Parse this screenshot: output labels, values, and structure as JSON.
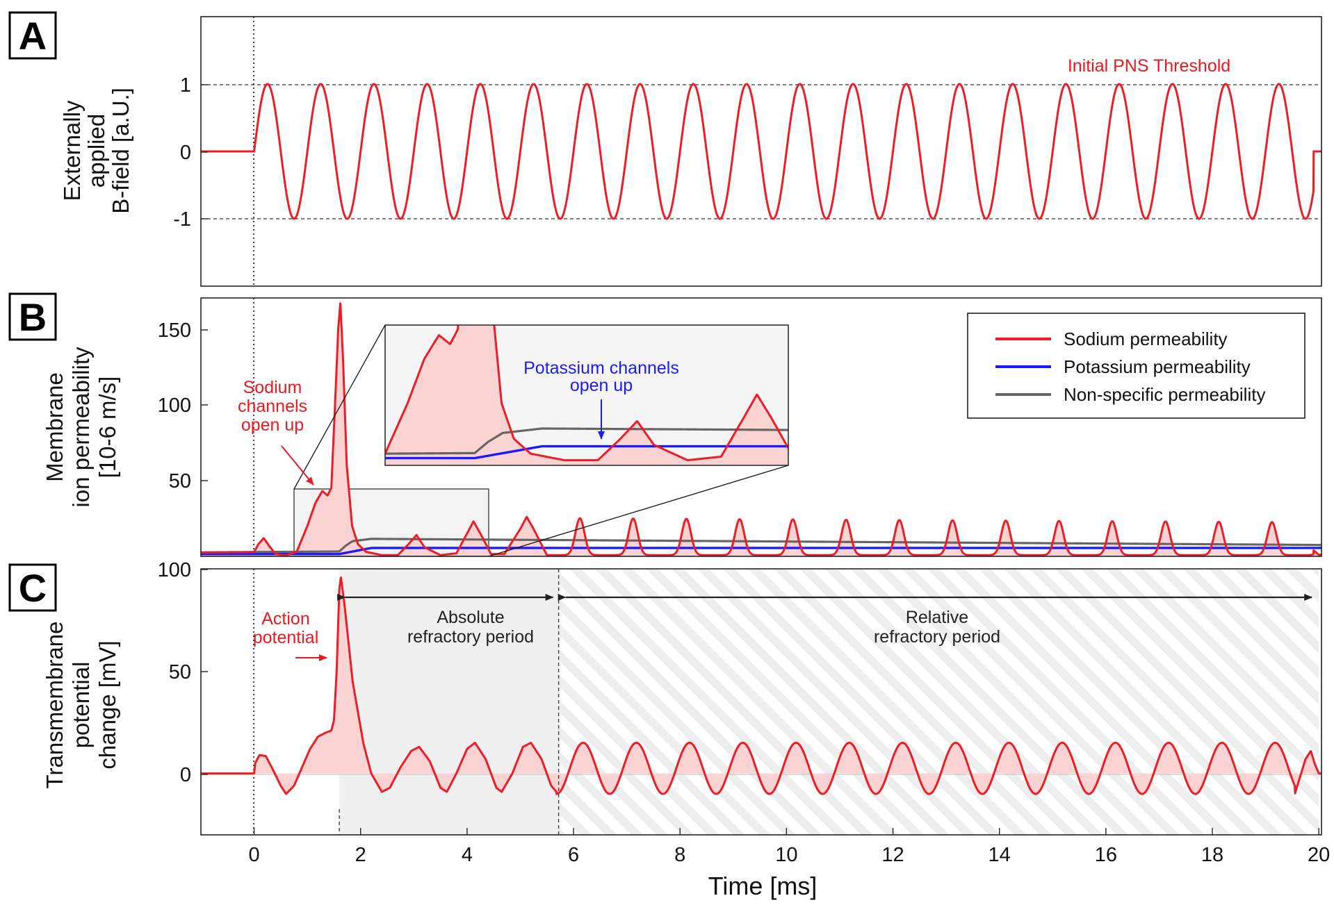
{
  "chart_data": [
    {
      "panel": "A",
      "type": "line",
      "ylabel": [
        "Externally",
        "applied",
        "B-field [a.U.]"
      ],
      "xlim": [
        -1,
        20.05
      ],
      "ylim": [
        -2,
        2
      ],
      "yticks": [
        -1,
        0,
        1
      ],
      "ytick_labels": [
        "-1",
        "0",
        "1"
      ],
      "threshold_lines": [
        1,
        -1
      ],
      "annotation": "Initial PNS Threshold",
      "series": [
        {
          "name": "B-field",
          "color": "#ee1c24",
          "signal": "sin(2*pi*t), on for 0 <= t <= 19.9 ms, 0 otherwise",
          "frequency_kHz": 1,
          "amplitude": 1,
          "onset_ms": 0,
          "end_ms": 19.9
        }
      ]
    },
    {
      "panel": "B",
      "type": "area",
      "ylabel": [
        "Membrane",
        "ion permeability",
        "[10-6 m/s]"
      ],
      "ylim": [
        0,
        170
      ],
      "yticks": [
        50,
        100,
        150
      ],
      "ytick_labels": [
        "50",
        "100",
        "150"
      ],
      "legend": {
        "placement": "top-right",
        "entries": [
          {
            "label": "Sodium permeability",
            "color": "#ee1c24"
          },
          {
            "label": "Potassium permeability",
            "color": "#1a1aff"
          },
          {
            "label": "Non-specific permeability",
            "color": "#666666"
          }
        ]
      },
      "annotations": [
        {
          "text": [
            "Sodium",
            "channels",
            "open up"
          ],
          "color": "#e8191f"
        },
        {
          "text": [
            "Potassium channels",
            "open up"
          ],
          "color": "#1a1aff"
        }
      ],
      "inset": {
        "x_range_ms": [
          0.8,
          4.4
        ],
        "y_range": [
          0,
          45
        ]
      },
      "sodium_points": [
        [
          -1,
          2.5
        ],
        [
          0,
          2.8
        ],
        [
          0.08,
          8
        ],
        [
          0.18,
          12
        ],
        [
          0.28,
          7
        ],
        [
          0.4,
          1.5
        ],
        [
          0.6,
          0.6
        ],
        [
          0.8,
          3
        ],
        [
          1.0,
          20
        ],
        [
          1.15,
          35
        ],
        [
          1.28,
          43
        ],
        [
          1.38,
          40
        ],
        [
          1.45,
          45
        ],
        [
          1.52,
          100
        ],
        [
          1.58,
          150
        ],
        [
          1.62,
          167
        ],
        [
          1.67,
          130
        ],
        [
          1.74,
          60
        ],
        [
          1.84,
          20
        ],
        [
          1.95,
          8
        ],
        [
          2.1,
          3
        ],
        [
          2.4,
          0.8
        ],
        [
          2.7,
          0.8
        ],
        [
          2.9,
          8
        ],
        [
          3.05,
          14
        ],
        [
          3.2,
          6
        ],
        [
          3.5,
          0.8
        ],
        [
          3.8,
          2
        ],
        [
          4.0,
          15
        ],
        [
          4.12,
          23
        ],
        [
          4.25,
          15
        ],
        [
          4.45,
          1.5
        ],
        [
          4.7,
          1.5
        ],
        [
          5.0,
          18
        ],
        [
          5.12,
          26
        ],
        [
          5.25,
          18
        ],
        [
          5.5,
          0.8
        ]
      ],
      "sodium_periodic": {
        "from_ms": 5.5,
        "to_ms": 19.9,
        "period_ms": 1,
        "peak_offset_ms": 0.62,
        "peak_start": 25,
        "peak_end": 22.5,
        "baseline": 0.8
      },
      "sodium_tail": [
        [
          19.9,
          4
        ],
        [
          20.0,
          1
        ]
      ],
      "potassium_points": [
        [
          -1,
          1.5
        ],
        [
          1.6,
          1.5
        ],
        [
          1.9,
          3.5
        ],
        [
          2.2,
          5.5
        ],
        [
          20,
          5.5
        ]
      ],
      "nonspecific_points": [
        [
          -1,
          2.6
        ],
        [
          1.6,
          3.2
        ],
        [
          1.72,
          7
        ],
        [
          1.85,
          10
        ],
        [
          2.2,
          11.5
        ],
        [
          20,
          7.5
        ]
      ]
    },
    {
      "panel": "C",
      "type": "area",
      "xlabel": "Time [ms]",
      "ylabel": [
        "Transmembrane",
        "potential",
        "change [mV]"
      ],
      "xlim": [
        -1,
        20.05
      ],
      "ylim": [
        -30,
        100
      ],
      "yticks": [
        0,
        50,
        100
      ],
      "ytick_labels": [
        "0",
        "50",
        "100"
      ],
      "xticks": [
        0,
        2,
        4,
        6,
        8,
        10,
        12,
        14,
        16,
        18,
        20
      ],
      "xtick_labels": [
        "0",
        "2",
        "4",
        "6",
        "8",
        "10",
        "12",
        "14",
        "16",
        "18",
        "20"
      ],
      "annotations": [
        {
          "text": [
            "Action",
            "potential"
          ],
          "color": "#e8191f"
        },
        {
          "text": [
            "Absolute",
            "refractory period"
          ],
          "x_range_ms": [
            1.6,
            5.72
          ]
        },
        {
          "text": [
            "Relative",
            "refractory period"
          ],
          "x_range_ms": [
            5.72,
            20.0
          ]
        }
      ],
      "potential_points": [
        [
          -1,
          0
        ],
        [
          0,
          0
        ],
        [
          0.02,
          5
        ],
        [
          0.1,
          9
        ],
        [
          0.22,
          8.5
        ],
        [
          0.35,
          2
        ],
        [
          0.5,
          -6
        ],
        [
          0.6,
          -10
        ],
        [
          0.75,
          -6
        ],
        [
          0.9,
          3
        ],
        [
          1.05,
          12
        ],
        [
          1.2,
          18
        ],
        [
          1.35,
          20
        ],
        [
          1.45,
          21
        ],
        [
          1.5,
          26
        ],
        [
          1.55,
          50
        ],
        [
          1.6,
          90
        ],
        [
          1.63,
          96
        ],
        [
          1.7,
          82
        ],
        [
          1.85,
          45
        ],
        [
          2.05,
          15
        ],
        [
          2.2,
          0
        ],
        [
          2.4,
          -9
        ],
        [
          2.55,
          -7
        ],
        [
          2.75,
          3
        ],
        [
          2.95,
          11
        ],
        [
          3.1,
          13
        ],
        [
          3.3,
          6
        ],
        [
          3.5,
          -7
        ],
        [
          3.62,
          -9
        ],
        [
          3.8,
          0
        ],
        [
          4.0,
          12
        ],
        [
          4.15,
          15
        ],
        [
          4.35,
          7
        ],
        [
          4.55,
          -7
        ],
        [
          4.65,
          -9
        ],
        [
          4.85,
          0
        ],
        [
          5.05,
          13
        ],
        [
          5.2,
          15
        ],
        [
          5.4,
          7
        ],
        [
          5.58,
          -6
        ],
        [
          5.68,
          -9
        ]
      ],
      "potential_periodic": {
        "from_ms": 5.68,
        "to_ms": 19.55,
        "period_ms": 1,
        "peak_offset_ms": 0.52,
        "peak": 15,
        "trough": -10
      },
      "potential_tail": [
        [
          19.75,
          7
        ],
        [
          19.85,
          11
        ],
        [
          19.92,
          5
        ],
        [
          20.0,
          0
        ]
      ]
    }
  ]
}
